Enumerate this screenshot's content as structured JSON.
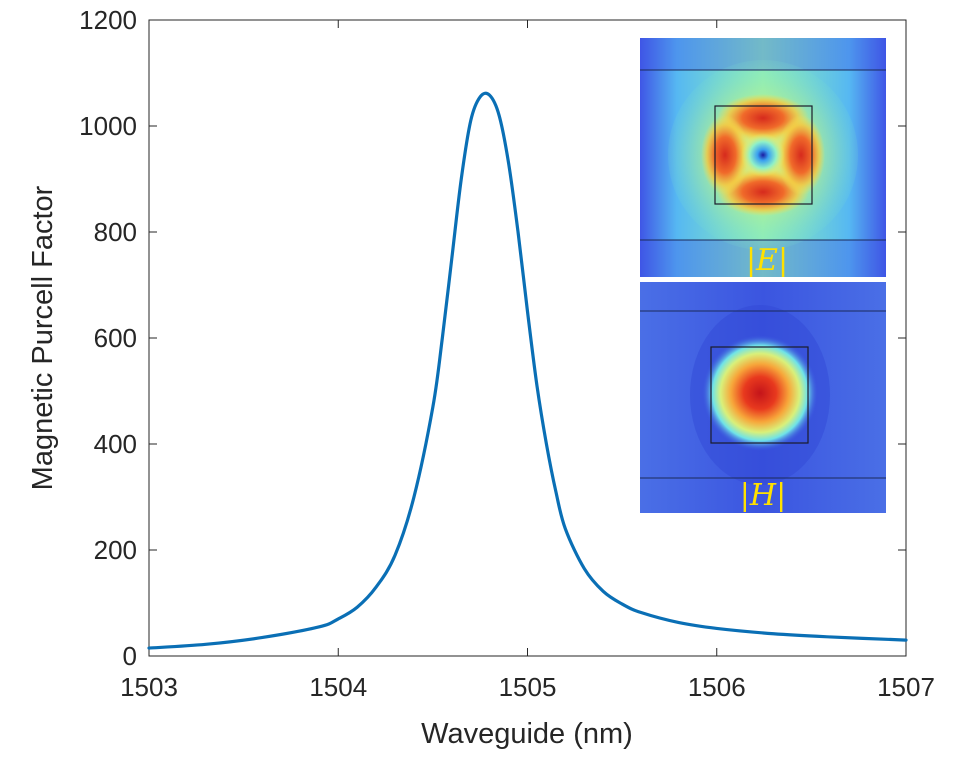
{
  "chart_data": {
    "type": "line",
    "title": "",
    "xlabel": "Waveguide (nm)",
    "ylabel": "Magnetic Purcell Factor",
    "xlim": [
      1503,
      1507
    ],
    "ylim": [
      0,
      1200
    ],
    "xticks": [
      1503,
      1504,
      1505,
      1506,
      1507
    ],
    "yticks": [
      0,
      200,
      400,
      600,
      800,
      1000,
      1200
    ],
    "xtick_labels": [
      "1503",
      "1504",
      "1505",
      "1506",
      "1507"
    ],
    "ytick_labels": [
      "0",
      "200",
      "400",
      "600",
      "800",
      "1000",
      "1200"
    ],
    "series": [
      {
        "name": "Magnetic Purcell Factor",
        "color": "#0a6fb5",
        "x": [
          1503.0,
          1503.3,
          1503.6,
          1503.9,
          1504.0,
          1504.1,
          1504.2,
          1504.3,
          1504.4,
          1504.5,
          1504.55,
          1504.6,
          1504.65,
          1504.7,
          1504.75,
          1504.8,
          1504.85,
          1504.9,
          1504.95,
          1505.0,
          1505.05,
          1505.1,
          1505.15,
          1505.2,
          1505.3,
          1505.4,
          1505.5,
          1505.6,
          1505.8,
          1506.0,
          1506.3,
          1506.6,
          1507.0
        ],
        "y": [
          15,
          22,
          35,
          55,
          70,
          92,
          130,
          190,
          300,
          470,
          600,
          750,
          900,
          1010,
          1055,
          1058,
          1020,
          930,
          800,
          650,
          510,
          400,
          310,
          240,
          165,
          122,
          98,
          82,
          63,
          52,
          42,
          36,
          30
        ]
      }
    ],
    "insets": [
      {
        "field": "electric",
        "label": "|E|"
      },
      {
        "field": "magnetic",
        "label": "|H|"
      }
    ]
  }
}
